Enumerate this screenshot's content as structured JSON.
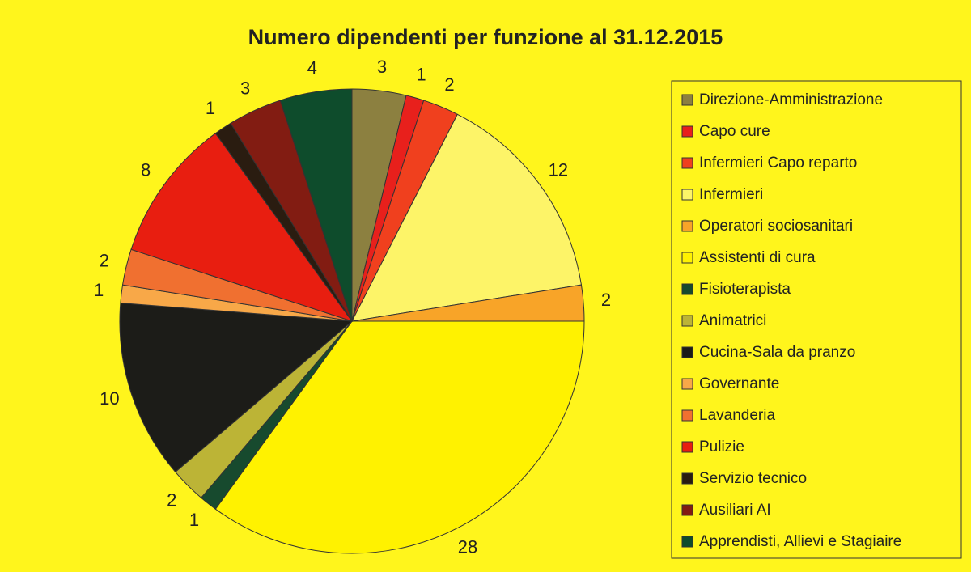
{
  "chart_data": {
    "type": "pie",
    "title": "Numero dipendenti per funzione al 31.12.2015",
    "categories": [
      "Direzione-Amministrazione",
      "Capo cure",
      "Infermieri Capo reparto",
      "Infermieri",
      "Operatori sociosanitari",
      "Assistenti di cura",
      "Fisioterapista",
      "Animatrici",
      "Cucina-Sala da pranzo",
      "Governante",
      "Lavanderia",
      "Pulizie",
      "Servizio tecnico",
      "Ausiliari AI",
      "Apprendisti, Allievi e Stagiaire"
    ],
    "values": [
      3,
      1,
      2,
      12,
      2,
      28,
      1,
      2,
      10,
      1,
      2,
      8,
      1,
      3,
      4
    ],
    "colors": [
      "#8c8040",
      "#e8201c",
      "#f0401e",
      "#fdf468",
      "#f8a428",
      "#fff200",
      "#174a2e",
      "#bcb436",
      "#1c1c18",
      "#f8a848",
      "#f07030",
      "#e81e10",
      "#2a1c10",
      "#821c12",
      "#0e4c2c"
    ],
    "legend": "right"
  }
}
